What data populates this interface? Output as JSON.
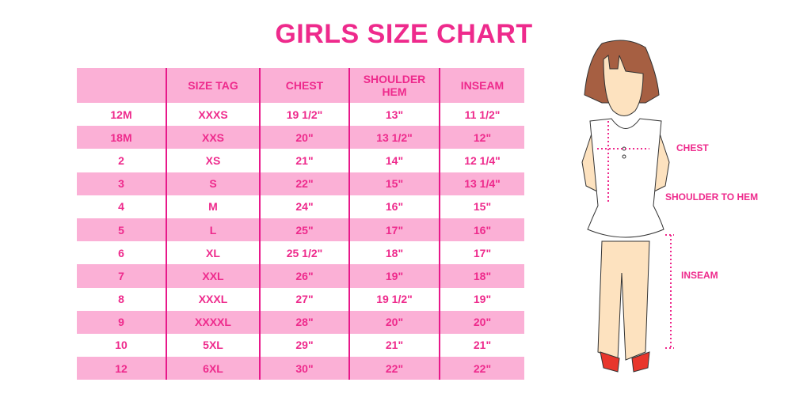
{
  "title": "GIRLS SIZE CHART",
  "table": {
    "headers": [
      "",
      "SIZE TAG",
      "CHEST",
      "SHOULDER HEM",
      "INSEAM"
    ],
    "rows": [
      [
        "12M",
        "XXXS",
        "19 1/2\"",
        "13\"",
        "11 1/2\""
      ],
      [
        "18M",
        "XXS",
        "20\"",
        "13 1/2\"",
        "12\""
      ],
      [
        "2",
        "XS",
        "21\"",
        "14\"",
        "12 1/4\""
      ],
      [
        "3",
        "S",
        "22\"",
        "15\"",
        "13 1/4\""
      ],
      [
        "4",
        "M",
        "24\"",
        "16\"",
        "15\""
      ],
      [
        "5",
        "L",
        "25\"",
        "17\"",
        "16\""
      ],
      [
        "6",
        "XL",
        "25 1/2\"",
        "18\"",
        "17\""
      ],
      [
        "7",
        "XXL",
        "26\"",
        "19\"",
        "18\""
      ],
      [
        "8",
        "XXXL",
        "27\"",
        "19 1/2\"",
        "19\""
      ],
      [
        "9",
        "XXXXL",
        "28\"",
        "20\"",
        "20\""
      ],
      [
        "10",
        "5XL",
        "29\"",
        "21\"",
        "21\""
      ],
      [
        "12",
        "6XL",
        "30\"",
        "22\"",
        "22\""
      ]
    ]
  },
  "figure": {
    "labels": {
      "chest": "CHEST",
      "shoulder_to_hem": "SHOULDER TO HEM",
      "inseam": "INSEAM"
    }
  },
  "colors": {
    "accent": "#ee2a8c",
    "row_pink": "#fbb0d6"
  }
}
